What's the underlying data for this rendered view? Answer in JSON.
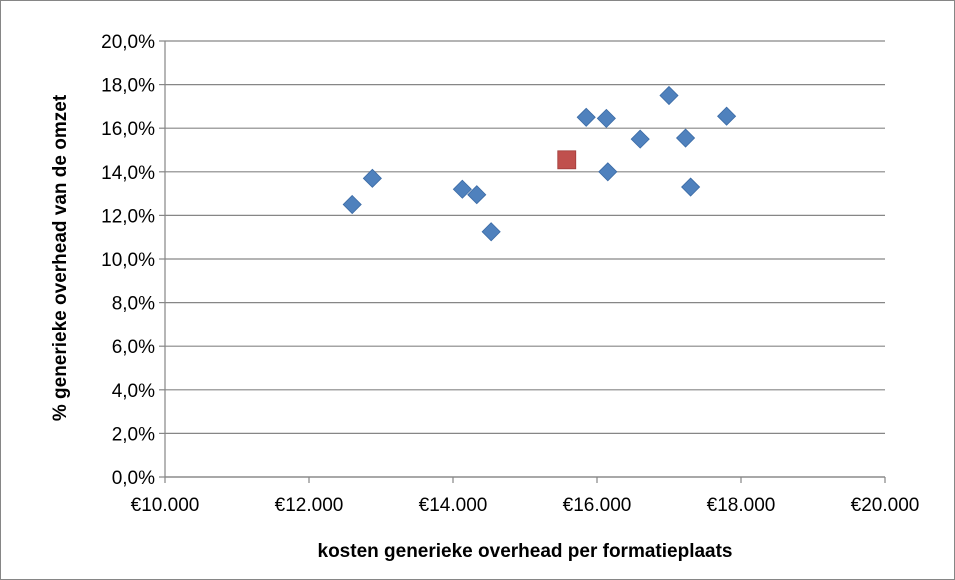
{
  "chart_data": {
    "type": "scatter",
    "title": "",
    "xlabel": "kosten generieke overhead per formatieplaats",
    "ylabel": "% generieke overhead van de omzet",
    "xlim": [
      10000,
      20000
    ],
    "ylim": [
      0,
      20
    ],
    "x_ticks": [
      10000,
      12000,
      14000,
      16000,
      18000,
      20000
    ],
    "x_tick_labels": [
      "€10.000",
      "€12.000",
      "€14.000",
      "€16.000",
      "€18.000",
      "€20.000"
    ],
    "y_ticks": [
      0,
      2,
      4,
      6,
      8,
      10,
      12,
      14,
      16,
      18,
      20
    ],
    "y_tick_labels": [
      "0,0%",
      "2,0%",
      "4,0%",
      "6,0%",
      "8,0%",
      "10,0%",
      "12,0%",
      "14,0%",
      "16,0%",
      "18,0%",
      "20,0%"
    ],
    "grid": "horizontal",
    "legend": "none",
    "series": [
      {
        "marker": "diamond",
        "color": "#4f81bd",
        "x": [
          12600,
          12880,
          14130,
          14330,
          14530,
          15850,
          16130,
          16150,
          16600,
          17000,
          17230,
          17300,
          17800
        ],
        "y": [
          12.5,
          13.7,
          13.2,
          12.95,
          11.25,
          16.5,
          16.45,
          14.0,
          15.5,
          17.5,
          15.55,
          13.3,
          16.55
        ]
      },
      {
        "marker": "square",
        "color": "#c0504d",
        "x": [
          15580
        ],
        "y": [
          14.55
        ]
      }
    ]
  }
}
